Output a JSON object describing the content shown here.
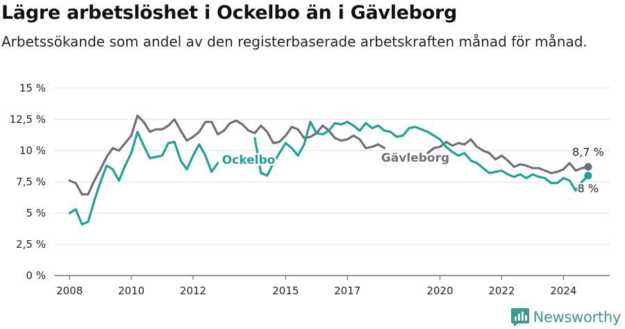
{
  "header": {
    "title": "Lägre arbetslöshet i Ockelbo än i Gävleborg",
    "subtitle": "Arbetssökande som andel av den registerbaserade arbetskraften månad för månad."
  },
  "brand": {
    "name": "Newsworthy",
    "icon": "newsworthy-logo-icon",
    "color": "#3a9a8e"
  },
  "chart_data": {
    "type": "line",
    "title": "Lägre arbetslöshet i Ockelbo än i Gävleborg",
    "subtitle": "Arbetssökande som andel av den registerbaserade arbetskraften månad för månad.",
    "xlabel": "",
    "ylabel": "",
    "ylim": [
      0,
      15
    ],
    "xlim": [
      2007.5,
      2025.5
    ],
    "grid": true,
    "y_ticks": [
      0,
      2.5,
      5,
      7.5,
      10,
      12.5,
      15
    ],
    "y_tick_labels": [
      "0 %",
      "2,5 %",
      "5 %",
      "7,5 %",
      "10 %",
      "12,5 %",
      "15 %"
    ],
    "x_ticks": [
      2008,
      2010,
      2012,
      2015,
      2017,
      2020,
      2022,
      2024
    ],
    "x_tick_labels": [
      "2008",
      "2010",
      "2012",
      "2015",
      "2017",
      "2020",
      "2022",
      "2024"
    ],
    "series": [
      {
        "name": "Gävleborg",
        "color": "#6e6e73",
        "end_label": "8,7 %",
        "x": [
          2008.0,
          2008.2,
          2008.4,
          2008.6,
          2008.8,
          2009.0,
          2009.2,
          2009.4,
          2009.6,
          2009.8,
          2010.0,
          2010.2,
          2010.4,
          2010.6,
          2010.8,
          2011.0,
          2011.2,
          2011.4,
          2011.6,
          2011.8,
          2012.0,
          2012.2,
          2012.4,
          2012.6,
          2012.8,
          2013.0,
          2013.2,
          2013.4,
          2013.6,
          2013.8,
          2014.0,
          2014.2,
          2014.4,
          2014.6,
          2014.8,
          2015.0,
          2015.2,
          2015.4,
          2015.6,
          2015.8,
          2016.0,
          2016.2,
          2016.4,
          2016.6,
          2016.8,
          2017.0,
          2017.2,
          2017.4,
          2017.6,
          2017.8,
          2018.0,
          2018.2,
          2018.4,
          2018.6,
          2018.8,
          2019.0,
          2019.2,
          2019.4,
          2019.6,
          2019.8,
          2020.0,
          2020.2,
          2020.4,
          2020.6,
          2020.8,
          2021.0,
          2021.2,
          2021.4,
          2021.6,
          2021.8,
          2022.0,
          2022.2,
          2022.4,
          2022.6,
          2022.8,
          2023.0,
          2023.2,
          2023.4,
          2023.6,
          2023.8,
          2024.0,
          2024.2,
          2024.4,
          2024.6,
          2024.8
        ],
        "y": [
          7.6,
          7.4,
          6.5,
          6.5,
          7.6,
          8.5,
          9.5,
          10.2,
          10.0,
          10.6,
          11.2,
          12.8,
          12.3,
          11.5,
          11.7,
          11.7,
          12.0,
          12.5,
          11.6,
          10.8,
          11.1,
          11.5,
          12.3,
          12.3,
          11.3,
          11.6,
          12.2,
          12.4,
          12.1,
          11.6,
          11.4,
          12.0,
          11.5,
          10.6,
          10.7,
          11.2,
          11.9,
          11.7,
          11.0,
          11.1,
          11.4,
          12.0,
          11.6,
          11.0,
          10.8,
          10.9,
          11.2,
          10.9,
          10.2,
          10.3,
          10.5,
          10.2,
          null,
          null,
          null,
          null,
          null,
          null,
          9.8,
          10.2,
          10.3,
          10.7,
          10.4,
          10.6,
          10.5,
          10.9,
          10.3,
          10.0,
          9.8,
          9.3,
          9.6,
          9.2,
          8.7,
          8.9,
          8.8,
          8.6,
          8.6,
          8.4,
          8.2,
          8.3,
          8.5,
          9.0,
          8.4,
          8.6,
          8.7
        ]
      },
      {
        "name": "Ockelbo",
        "color": "#1aa394",
        "end_label": "8 %",
        "x": [
          2008.0,
          2008.2,
          2008.4,
          2008.6,
          2008.8,
          2009.0,
          2009.2,
          2009.4,
          2009.6,
          2009.8,
          2010.0,
          2010.2,
          2010.4,
          2010.6,
          2010.8,
          2011.0,
          2011.2,
          2011.4,
          2011.6,
          2011.8,
          2012.0,
          2012.2,
          2012.4,
          2012.6,
          2012.8,
          2013.0,
          2013.2,
          2013.4,
          2013.6,
          2013.8,
          2014.0,
          2014.2,
          2014.4,
          2014.6,
          2014.8,
          2015.0,
          2015.2,
          2015.4,
          2015.6,
          2015.8,
          2016.0,
          2016.2,
          2016.4,
          2016.6,
          2016.8,
          2017.0,
          2017.2,
          2017.4,
          2017.6,
          2017.8,
          2018.0,
          2018.2,
          2018.4,
          2018.6,
          2018.8,
          2019.0,
          2019.2,
          2019.4,
          2019.6,
          2019.8,
          2020.0,
          2020.2,
          2020.4,
          2020.6,
          2020.8,
          2021.0,
          2021.2,
          2021.4,
          2021.6,
          2021.8,
          2022.0,
          2022.2,
          2022.4,
          2022.6,
          2022.8,
          2023.0,
          2023.2,
          2023.4,
          2023.6,
          2023.8,
          2024.0,
          2024.2,
          2024.4,
          2024.6,
          2024.8
        ],
        "y": [
          5.0,
          5.3,
          4.1,
          4.3,
          6.0,
          7.5,
          8.8,
          8.5,
          7.6,
          8.8,
          9.8,
          11.5,
          10.4,
          9.4,
          9.5,
          9.6,
          10.6,
          10.7,
          9.2,
          8.5,
          9.6,
          10.5,
          9.6,
          8.3,
          9.0,
          null,
          null,
          null,
          null,
          null,
          11.0,
          8.2,
          8.0,
          9.0,
          9.8,
          10.6,
          10.2,
          9.6,
          10.5,
          12.3,
          11.4,
          11.3,
          11.6,
          12.2,
          12.1,
          12.3,
          12.0,
          11.6,
          12.2,
          11.8,
          12.0,
          11.6,
          11.5,
          11.1,
          11.2,
          11.8,
          11.9,
          11.7,
          11.5,
          11.2,
          10.9,
          10.3,
          9.9,
          9.6,
          9.8,
          9.2,
          9.0,
          8.6,
          8.2,
          8.3,
          8.4,
          8.1,
          7.9,
          8.1,
          7.8,
          8.1,
          7.9,
          7.8,
          7.4,
          7.4,
          7.8,
          7.6,
          6.8,
          7.5,
          8.0
        ]
      }
    ]
  }
}
